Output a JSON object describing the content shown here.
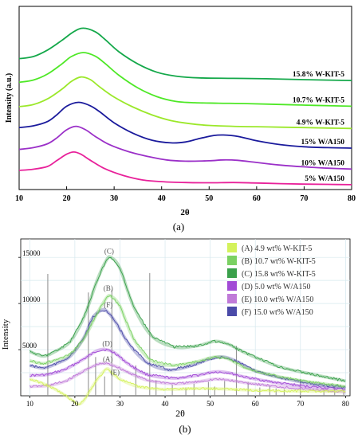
{
  "panel_a": {
    "caption": "(a)",
    "chart_data": {
      "type": "line",
      "title": "",
      "xlabel": "2θ",
      "ylabel": "Intensity (a.u.)",
      "xlim": [
        10,
        80
      ],
      "x_ticks": [
        10,
        20,
        30,
        40,
        50,
        60,
        70,
        80
      ],
      "y_ticks_shown": false,
      "grid": false,
      "legend": "labels at right end of each curve",
      "series": [
        {
          "name": "5% W/A150",
          "color": "#e8219a",
          "points": [
            [
              10,
              0.34
            ],
            [
              13,
              0.365
            ],
            [
              16,
              0.43
            ],
            [
              18,
              0.57
            ],
            [
              20,
              0.71
            ],
            [
              21.5,
              0.76
            ],
            [
              23,
              0.71
            ],
            [
              25,
              0.57
            ],
            [
              28,
              0.38
            ],
            [
              32,
              0.22
            ],
            [
              36,
              0.12
            ],
            [
              40,
              0.08
            ],
            [
              45,
              0.06
            ],
            [
              50,
              0.055
            ],
            [
              55,
              0.06
            ],
            [
              60,
              0.05
            ],
            [
              65,
              0.035
            ],
            [
              70,
              0.025
            ],
            [
              75,
              0.018
            ],
            [
              80,
              0.012
            ]
          ]
        },
        {
          "name": "10% W/A150",
          "color": "#9b30c8",
          "points": [
            [
              10,
              0.82
            ],
            [
              13,
              0.86
            ],
            [
              16,
              0.95
            ],
            [
              18,
              1.09
            ],
            [
              20,
              1.27
            ],
            [
              22,
              1.35
            ],
            [
              24,
              1.27
            ],
            [
              26,
              1.12
            ],
            [
              29,
              0.93
            ],
            [
              33,
              0.77
            ],
            [
              37,
              0.66
            ],
            [
              41,
              0.58
            ],
            [
              45,
              0.55
            ],
            [
              50,
              0.56
            ],
            [
              53,
              0.58
            ],
            [
              56,
              0.57
            ],
            [
              60,
              0.52
            ],
            [
              65,
              0.46
            ],
            [
              70,
              0.42
            ],
            [
              75,
              0.39
            ],
            [
              80,
              0.37
            ]
          ]
        },
        {
          "name": "15% W/A150",
          "color": "#1a1a9c",
          "points": [
            [
              10,
              1.32
            ],
            [
              13,
              1.36
            ],
            [
              16,
              1.46
            ],
            [
              18,
              1.62
            ],
            [
              20,
              1.81
            ],
            [
              22.5,
              1.9
            ],
            [
              25,
              1.82
            ],
            [
              27,
              1.68
            ],
            [
              30,
              1.43
            ],
            [
              34,
              1.19
            ],
            [
              38,
              1.03
            ],
            [
              42,
              0.97
            ],
            [
              45,
              0.99
            ],
            [
              48,
              1.07
            ],
            [
              51,
              1.14
            ],
            [
              53,
              1.15
            ],
            [
              56,
              1.12
            ],
            [
              60,
              1.02
            ],
            [
              65,
              0.93
            ],
            [
              70,
              0.88
            ],
            [
              75,
              0.86
            ],
            [
              80,
              0.85
            ]
          ]
        },
        {
          "name": "4.9% W-KIT-5",
          "color": "#9be82a",
          "points": [
            [
              10,
              1.8
            ],
            [
              13,
              1.85
            ],
            [
              16,
              1.98
            ],
            [
              19,
              2.2
            ],
            [
              21,
              2.38
            ],
            [
              23,
              2.48
            ],
            [
              25,
              2.42
            ],
            [
              27,
              2.25
            ],
            [
              30,
              2.02
            ],
            [
              34,
              1.79
            ],
            [
              38,
              1.61
            ],
            [
              42,
              1.48
            ],
            [
              46,
              1.41
            ],
            [
              50,
              1.37
            ],
            [
              55,
              1.35
            ],
            [
              60,
              1.34
            ],
            [
              65,
              1.33
            ],
            [
              70,
              1.32
            ],
            [
              75,
              1.31
            ],
            [
              80,
              1.3
            ]
          ]
        },
        {
          "name": "10.7% W-KIT-5",
          "color": "#4ee826",
          "points": [
            [
              10,
              2.36
            ],
            [
              13,
              2.41
            ],
            [
              16,
              2.55
            ],
            [
              19,
              2.78
            ],
            [
              21,
              2.95
            ],
            [
              23.5,
              3.04
            ],
            [
              26,
              2.96
            ],
            [
              28,
              2.8
            ],
            [
              31,
              2.52
            ],
            [
              35,
              2.23
            ],
            [
              39,
              2.03
            ],
            [
              43,
              1.92
            ],
            [
              47,
              1.89
            ],
            [
              52,
              1.88
            ],
            [
              58,
              1.87
            ],
            [
              65,
              1.85
            ],
            [
              72,
              1.83
            ],
            [
              80,
              1.81
            ]
          ]
        },
        {
          "name": "15.8% W-KIT-5",
          "color": "#14a84a",
          "points": [
            [
              10,
              2.9
            ],
            [
              13,
              2.95
            ],
            [
              16,
              3.1
            ],
            [
              19,
              3.32
            ],
            [
              21.5,
              3.52
            ],
            [
              23.5,
              3.6
            ],
            [
              26,
              3.52
            ],
            [
              28,
              3.35
            ],
            [
              31,
              3.06
            ],
            [
              35,
              2.78
            ],
            [
              39,
              2.59
            ],
            [
              43,
              2.5
            ],
            [
              48,
              2.46
            ],
            [
              55,
              2.45
            ],
            [
              62,
              2.44
            ],
            [
              70,
              2.42
            ],
            [
              80,
              2.4
            ]
          ]
        }
      ]
    }
  },
  "panel_b": {
    "caption": "(b)",
    "chart_data": {
      "type": "line",
      "title": "",
      "xlabel": "2θ",
      "ylabel": "Intensity",
      "xlim": [
        8,
        81
      ],
      "ylim": [
        0,
        17000
      ],
      "x_ticks": [
        10,
        20,
        30,
        40,
        50,
        60,
        70,
        80
      ],
      "y_ticks": [
        5000,
        10000,
        15000
      ],
      "grid": true,
      "legend": "top-right",
      "series": [
        {
          "name": "(A) 4.9 wt%  W-KIT-5",
          "color": "#d4f25c",
          "points": [
            [
              10,
              1800
            ],
            [
              12,
              1500
            ],
            [
              14,
              1100
            ],
            [
              16,
              600
            ],
            [
              18,
              0
            ],
            [
              20,
              -700
            ],
            [
              21,
              -900
            ],
            [
              22,
              -500
            ],
            [
              23,
              300
            ],
            [
              25,
              1800
            ],
            [
              27,
              2900
            ],
            [
              28,
              2600
            ],
            [
              30,
              1800
            ],
            [
              34,
              1000
            ],
            [
              40,
              700
            ],
            [
              48,
              800
            ],
            [
              55,
              700
            ],
            [
              60,
              600
            ],
            [
              70,
              500
            ],
            [
              80,
              500
            ]
          ]
        },
        {
          "name": "(B) 10.7 wt%  W-KIT-5",
          "color": "#7bd163",
          "points": [
            [
              10,
              3800
            ],
            [
              13,
              3500
            ],
            [
              16,
              3900
            ],
            [
              19,
              4500
            ],
            [
              22,
              6200
            ],
            [
              25,
              9000
            ],
            [
              27,
              10600
            ],
            [
              28,
              10800
            ],
            [
              30,
              9700
            ],
            [
              33,
              6200
            ],
            [
              37,
              3800
            ],
            [
              42,
              3300
            ],
            [
              47,
              3700
            ],
            [
              51,
              4200
            ],
            [
              54,
              4000
            ],
            [
              58,
              3000
            ],
            [
              65,
              2100
            ],
            [
              72,
              1500
            ],
            [
              80,
              1000
            ]
          ]
        },
        {
          "name": "(C) 15.8 wt%  W-KIT-5",
          "color": "#3aa04b",
          "points": [
            [
              10,
              4800
            ],
            [
              13,
              4300
            ],
            [
              16,
              4900
            ],
            [
              19,
              5900
            ],
            [
              22,
              8500
            ],
            [
              25,
              12600
            ],
            [
              27,
              14700
            ],
            [
              28,
              15000
            ],
            [
              30,
              13800
            ],
            [
              33,
              9700
            ],
            [
              37,
              6500
            ],
            [
              42,
              5300
            ],
            [
              47,
              5400
            ],
            [
              51,
              5900
            ],
            [
              54,
              5600
            ],
            [
              58,
              4600
            ],
            [
              65,
              3200
            ],
            [
              72,
              2400
            ],
            [
              80,
              1600
            ]
          ]
        },
        {
          "name": "(D) 5.0 wt%  W/A150",
          "color": "#a24bd6",
          "points": [
            [
              10,
              2200
            ],
            [
              14,
              2300
            ],
            [
              18,
              2900
            ],
            [
              22,
              4000
            ],
            [
              25,
              4900
            ],
            [
              27,
              5000
            ],
            [
              29,
              4600
            ],
            [
              32,
              3400
            ],
            [
              36,
              2300
            ],
            [
              42,
              1900
            ],
            [
              47,
              2200
            ],
            [
              51,
              2600
            ],
            [
              54,
              2500
            ],
            [
              58,
              2000
            ],
            [
              65,
              1400
            ],
            [
              72,
              1000
            ],
            [
              80,
              700
            ]
          ]
        },
        {
          "name": "(E) 10.0 wt%  W/A150",
          "color": "#c07ad8",
          "points": [
            [
              10,
              1000
            ],
            [
              14,
              1100
            ],
            [
              18,
              1600
            ],
            [
              22,
              2700
            ],
            [
              25,
              3400
            ],
            [
              27,
              3500
            ],
            [
              29,
              3200
            ],
            [
              32,
              2500
            ],
            [
              36,
              1700
            ],
            [
              42,
              1300
            ],
            [
              47,
              1500
            ],
            [
              51,
              1800
            ],
            [
              54,
              1700
            ],
            [
              58,
              1400
            ],
            [
              65,
              1000
            ],
            [
              72,
              700
            ],
            [
              80,
              400
            ]
          ]
        },
        {
          "name": "(F) 15.0 wt%  W/A150",
          "color": "#4a4aa8",
          "points": [
            [
              10,
              3300
            ],
            [
              13,
              3000
            ],
            [
              16,
              3500
            ],
            [
              19,
              4300
            ],
            [
              22,
              6300
            ],
            [
              24,
              8500
            ],
            [
              26,
              9300
            ],
            [
              27,
              9200
            ],
            [
              29,
              8000
            ],
            [
              32,
              5600
            ],
            [
              36,
              3600
            ],
            [
              41,
              2800
            ],
            [
              46,
              3300
            ],
            [
              50,
              4000
            ],
            [
              53,
              4200
            ],
            [
              56,
              3700
            ],
            [
              60,
              2700
            ],
            [
              67,
              1800
            ],
            [
              74,
              1200
            ],
            [
              80,
              900
            ]
          ]
        }
      ],
      "reference_lines": {
        "color": "#8a8a8a",
        "positions": [
          [
            14,
            13200
          ],
          [
            23,
            11200
          ],
          [
            24.6,
            4200
          ],
          [
            26.6,
            2100
          ],
          [
            28.2,
            11500
          ],
          [
            33.5,
            3300
          ],
          [
            36.6,
            13300
          ],
          [
            38,
            1700
          ],
          [
            41.6,
            1200
          ],
          [
            44.6,
            900
          ],
          [
            46.4,
            1300
          ],
          [
            49.6,
            1500
          ],
          [
            51,
            1000
          ],
          [
            53.2,
            1600
          ],
          [
            55.8,
            5400
          ],
          [
            58.4,
            1500
          ],
          [
            61,
            900
          ],
          [
            63.2,
            1100
          ],
          [
            64.6,
            800
          ],
          [
            66.4,
            700
          ],
          [
            70,
            1800
          ],
          [
            75.2,
            700
          ],
          [
            77.6,
            900
          ],
          [
            79.6,
            600
          ]
        ]
      },
      "peak_labels": [
        {
          "text": "(C)",
          "x": 27.6,
          "y": 15400
        },
        {
          "text": "(B)",
          "x": 27.4,
          "y": 11400
        },
        {
          "text": "(F)",
          "x": 27.4,
          "y": 9600
        },
        {
          "text": "(D)",
          "x": 27.2,
          "y": 5400
        },
        {
          "text": "(A)",
          "x": 27.3,
          "y": 3700
        },
        {
          "text": "(E)",
          "x": 28.9,
          "y": 2300
        }
      ]
    }
  }
}
